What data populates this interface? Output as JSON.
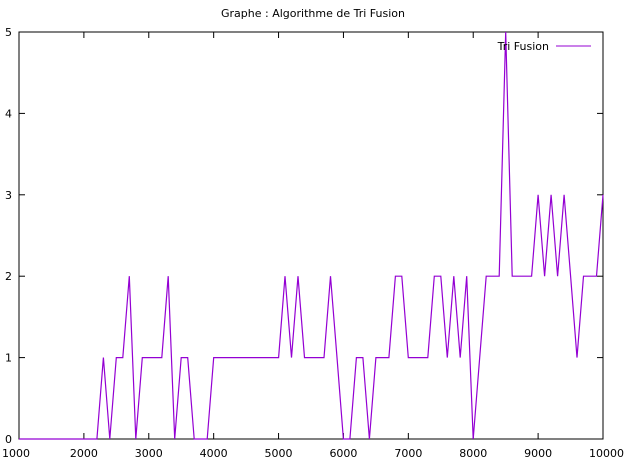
{
  "chart_data": {
    "type": "line",
    "title": "Graphe : Algorithme de Tri Fusion",
    "xlabel": "",
    "ylabel": "",
    "xlim": [
      1000,
      10000
    ],
    "ylim": [
      0,
      5
    ],
    "x_ticks": [
      "1000",
      "2000",
      "3000",
      "4000",
      "5000",
      "6000",
      "7000",
      "8000",
      "9000",
      "10000"
    ],
    "y_ticks": [
      "0",
      "1",
      "2",
      "3",
      "4",
      "5"
    ],
    "grid": false,
    "legend_position": "top-right",
    "series": [
      {
        "name": "Tri Fusion",
        "color": "#9400d3",
        "x": [
          1000,
          2200,
          2300,
          2400,
          2500,
          2600,
          2700,
          2800,
          2900,
          3000,
          3100,
          3200,
          3300,
          3400,
          3500,
          3600,
          3700,
          3800,
          3900,
          4000,
          4100,
          4200,
          4300,
          4400,
          4500,
          4600,
          4700,
          4800,
          4900,
          5000,
          5100,
          5200,
          5300,
          5400,
          5500,
          5600,
          5700,
          5800,
          5900,
          6000,
          6100,
          6200,
          6300,
          6400,
          6500,
          6600,
          6700,
          6800,
          6900,
          7000,
          7100,
          7200,
          7300,
          7400,
          7500,
          7600,
          7700,
          7800,
          7900,
          8000,
          8100,
          8200,
          8300,
          8400,
          8500,
          8600,
          8700,
          8800,
          8900,
          9000,
          9100,
          9200,
          9300,
          9400,
          9500,
          9600,
          9700,
          9800,
          9900,
          10000
        ],
        "y": [
          0,
          0,
          1,
          0,
          1,
          1,
          2,
          0,
          1,
          1,
          1,
          1,
          2,
          0,
          1,
          1,
          0,
          0,
          0,
          1,
          1,
          1,
          1,
          1,
          1,
          1,
          1,
          1,
          1,
          1,
          2,
          1,
          2,
          1,
          1,
          1,
          1,
          2,
          1,
          0,
          0,
          1,
          1,
          0,
          1,
          1,
          1,
          2,
          2,
          1,
          1,
          1,
          1,
          2,
          2,
          1,
          2,
          1,
          2,
          0,
          1,
          2,
          2,
          2,
          5,
          2,
          2,
          2,
          2,
          3,
          2,
          3,
          2,
          3,
          2,
          1,
          2,
          2,
          2,
          3
        ]
      }
    ]
  }
}
